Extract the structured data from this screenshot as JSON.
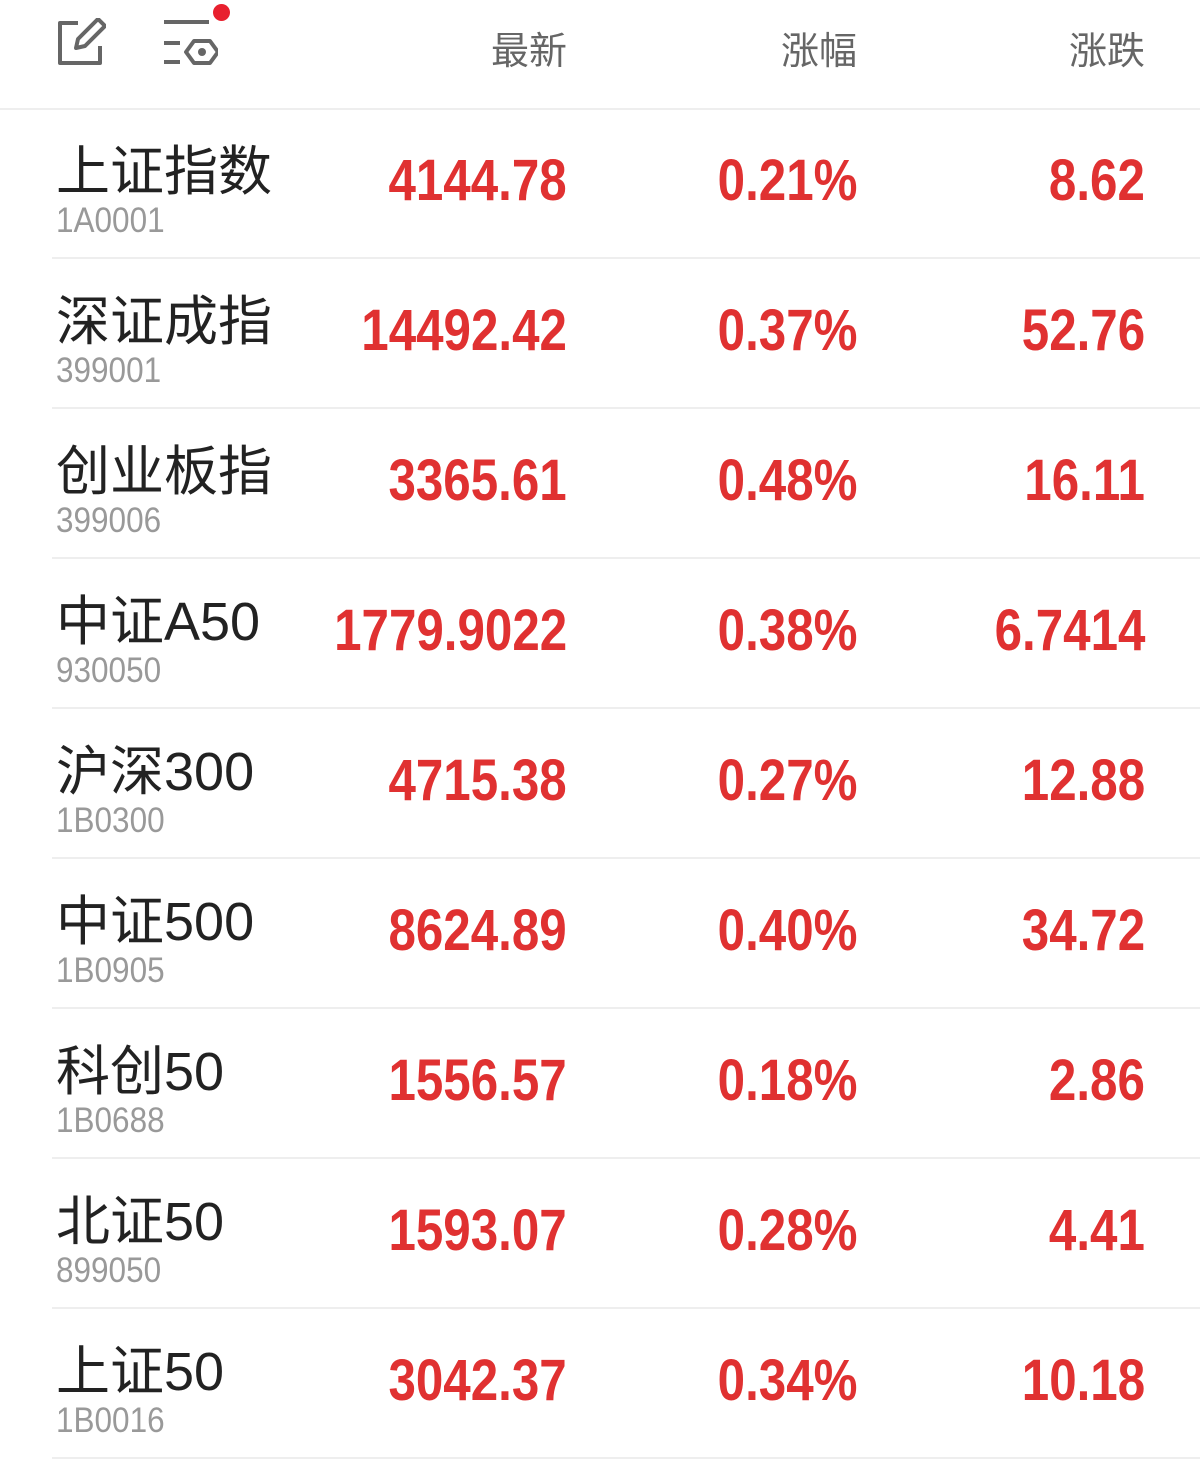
{
  "header": {
    "icons": [
      "edit-icon",
      "filter-settings-icon"
    ],
    "notification_dot_color": "#e8202e",
    "columns": [
      "最新",
      "涨幅",
      "涨跌"
    ]
  },
  "colors": {
    "up": "#e03131",
    "name": "#222222",
    "code": "#999999"
  },
  "rows": [
    {
      "name": "上证指数",
      "code": "1A0001",
      "latest": "4144.78",
      "pct": "0.21%",
      "change": "8.62"
    },
    {
      "name": "深证成指",
      "code": "399001",
      "latest": "14492.42",
      "pct": "0.37%",
      "change": "52.76"
    },
    {
      "name": "创业板指",
      "code": "399006",
      "latest": "3365.61",
      "pct": "0.48%",
      "change": "16.11"
    },
    {
      "name": "中证A50",
      "code": "930050",
      "latest": "1779.9022",
      "pct": "0.38%",
      "change": "6.7414"
    },
    {
      "name": "沪深300",
      "code": "1B0300",
      "latest": "4715.38",
      "pct": "0.27%",
      "change": "12.88"
    },
    {
      "name": "中证500",
      "code": "1B0905",
      "latest": "8624.89",
      "pct": "0.40%",
      "change": "34.72"
    },
    {
      "name": "科创50",
      "code": "1B0688",
      "latest": "1556.57",
      "pct": "0.18%",
      "change": "2.86"
    },
    {
      "name": "北证50",
      "code": "899050",
      "latest": "1593.07",
      "pct": "0.28%",
      "change": "4.41"
    },
    {
      "name": "上证50",
      "code": "1B0016",
      "latest": "3042.37",
      "pct": "0.34%",
      "change": "10.18"
    }
  ]
}
